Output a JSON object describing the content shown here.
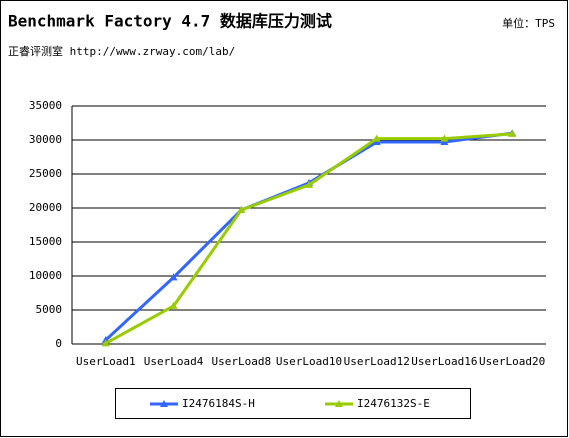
{
  "chart_data": {
    "type": "line",
    "title": "Benchmark Factory 4.7 数据库压力测试",
    "unit": "单位：TPS",
    "subtitle": "正睿评测室 http://www.zrway.com/lab/",
    "categories": [
      "UserLoad1",
      "UserLoad4",
      "UserLoad8",
      "UserLoad10",
      "UserLoad12",
      "UserLoad16",
      "UserLoad20"
    ],
    "series": [
      {
        "name": "I2476184S-H",
        "color": "#3366ff",
        "values": [
          600,
          9800,
          19700,
          23700,
          29700,
          29700,
          31000
        ]
      },
      {
        "name": "I2476132S-E",
        "color": "#99cc00",
        "values": [
          100,
          5600,
          19700,
          23400,
          30200,
          30200,
          30900
        ]
      }
    ],
    "ylim": [
      0,
      35000
    ],
    "yticks": [
      0,
      5000,
      10000,
      15000,
      20000,
      25000,
      30000,
      35000
    ],
    "grid": true,
    "legend": "bottom"
  }
}
